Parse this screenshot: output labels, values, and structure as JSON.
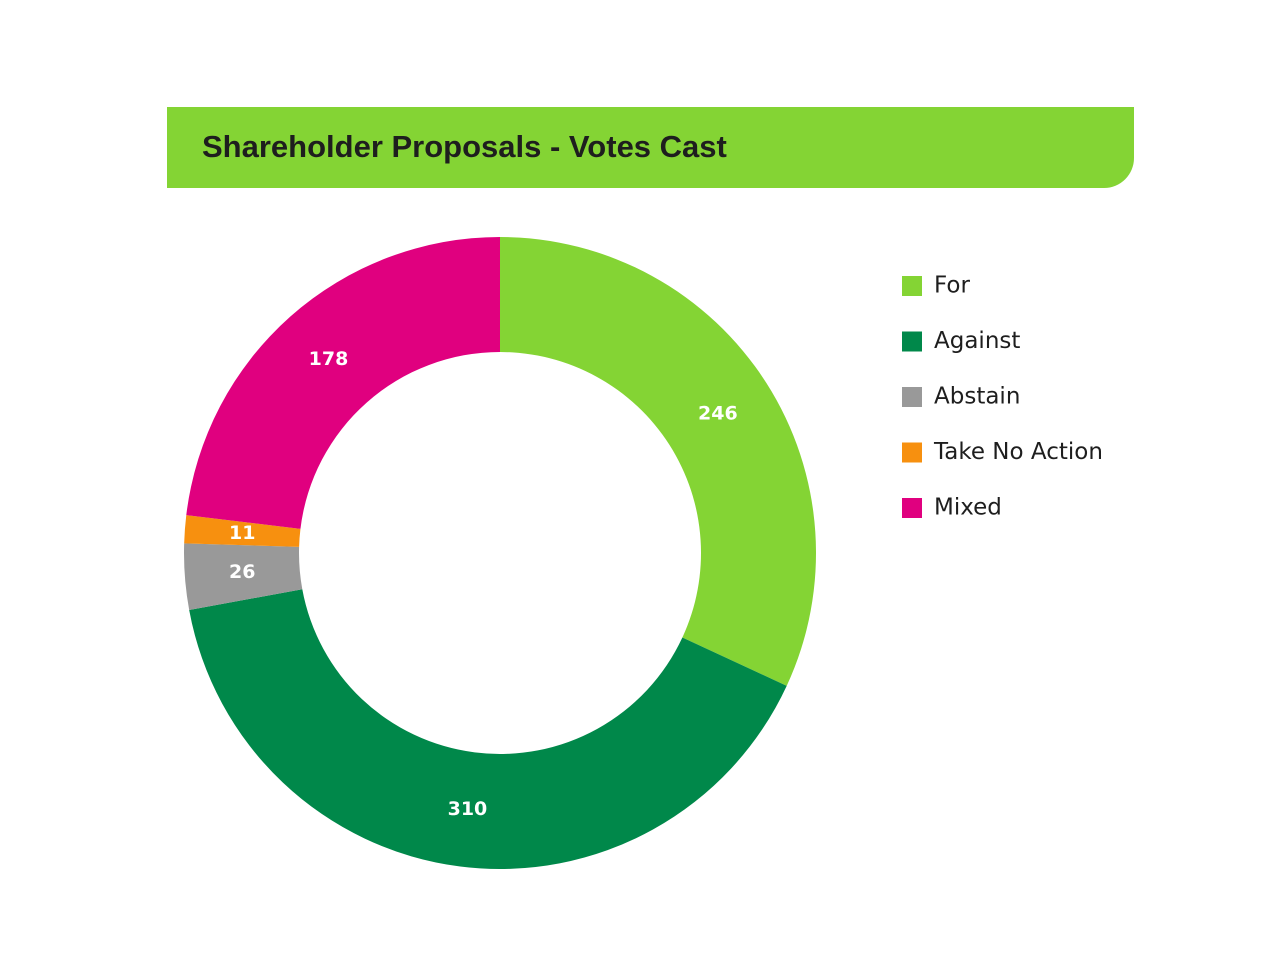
{
  "chart_data": {
    "type": "pie",
    "title": "Shareholder Proposals - Votes Cast",
    "categories": [
      "For",
      "Against",
      "Abstain",
      "Take No Action",
      "Mixed"
    ],
    "values": [
      246,
      310,
      26,
      11,
      178
    ],
    "colors": [
      "#84d434",
      "#00884a",
      "#999999",
      "#f7900f",
      "#e0007f"
    ],
    "donut": true,
    "legend": "right"
  }
}
